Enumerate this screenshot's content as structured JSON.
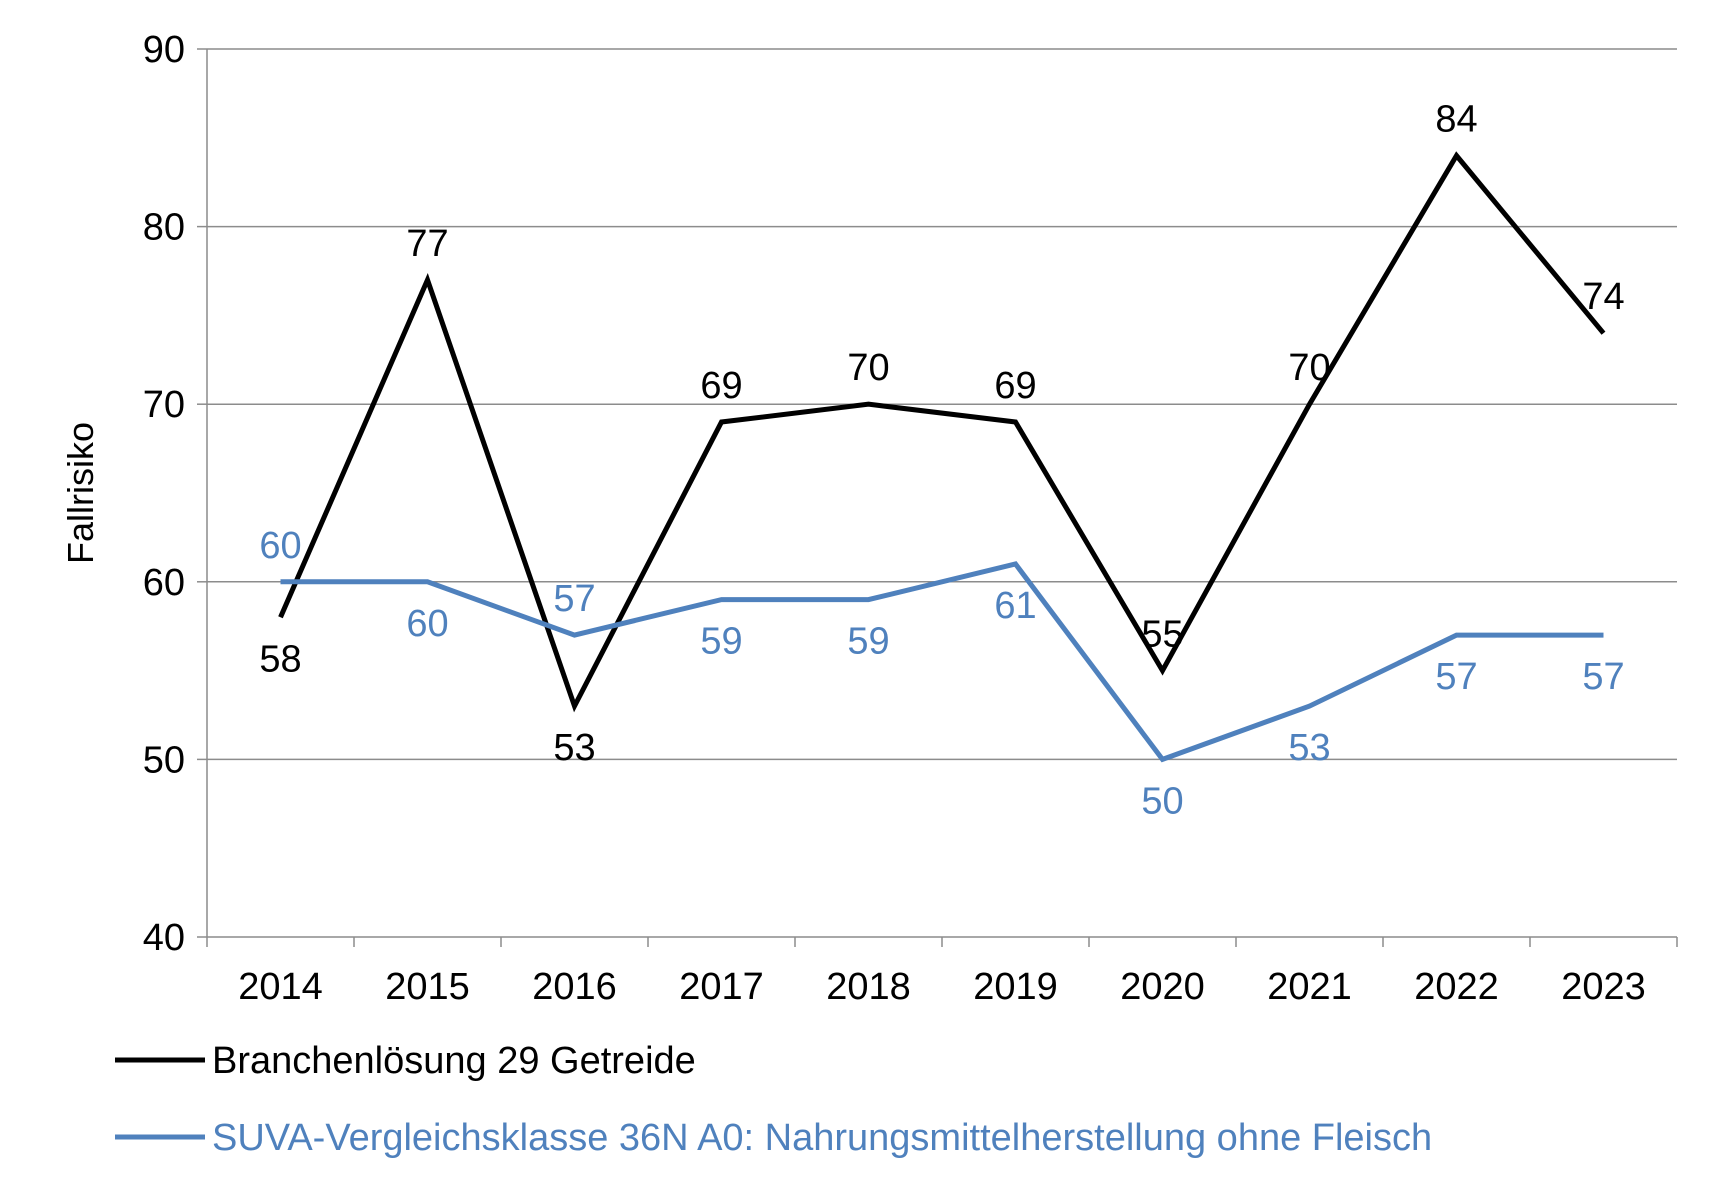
{
  "chart_data": {
    "type": "line",
    "categories": [
      "2014",
      "2015",
      "2016",
      "2017",
      "2018",
      "2019",
      "2020",
      "2021",
      "2022",
      "2023"
    ],
    "series": [
      {
        "name": "Branchenlösung 29 Getreide",
        "color": "#000000",
        "values": [
          58,
          77,
          53,
          69,
          70,
          69,
          55,
          70,
          84,
          74
        ]
      },
      {
        "name": "SUVA-Vergleichsklasse 36N A0: Nahrungsmittelherstellung ohne Fleisch",
        "color": "#4f81bd",
        "values": [
          60,
          60,
          57,
          59,
          59,
          61,
          50,
          53,
          57,
          57
        ]
      }
    ],
    "title": "",
    "xlabel": "",
    "ylabel": "Fallrisiko",
    "ylim": [
      40,
      90
    ],
    "yticks": [
      40,
      50,
      60,
      70,
      80,
      90
    ],
    "grid": true,
    "legend_position": "bottom",
    "data_labels": true
  }
}
